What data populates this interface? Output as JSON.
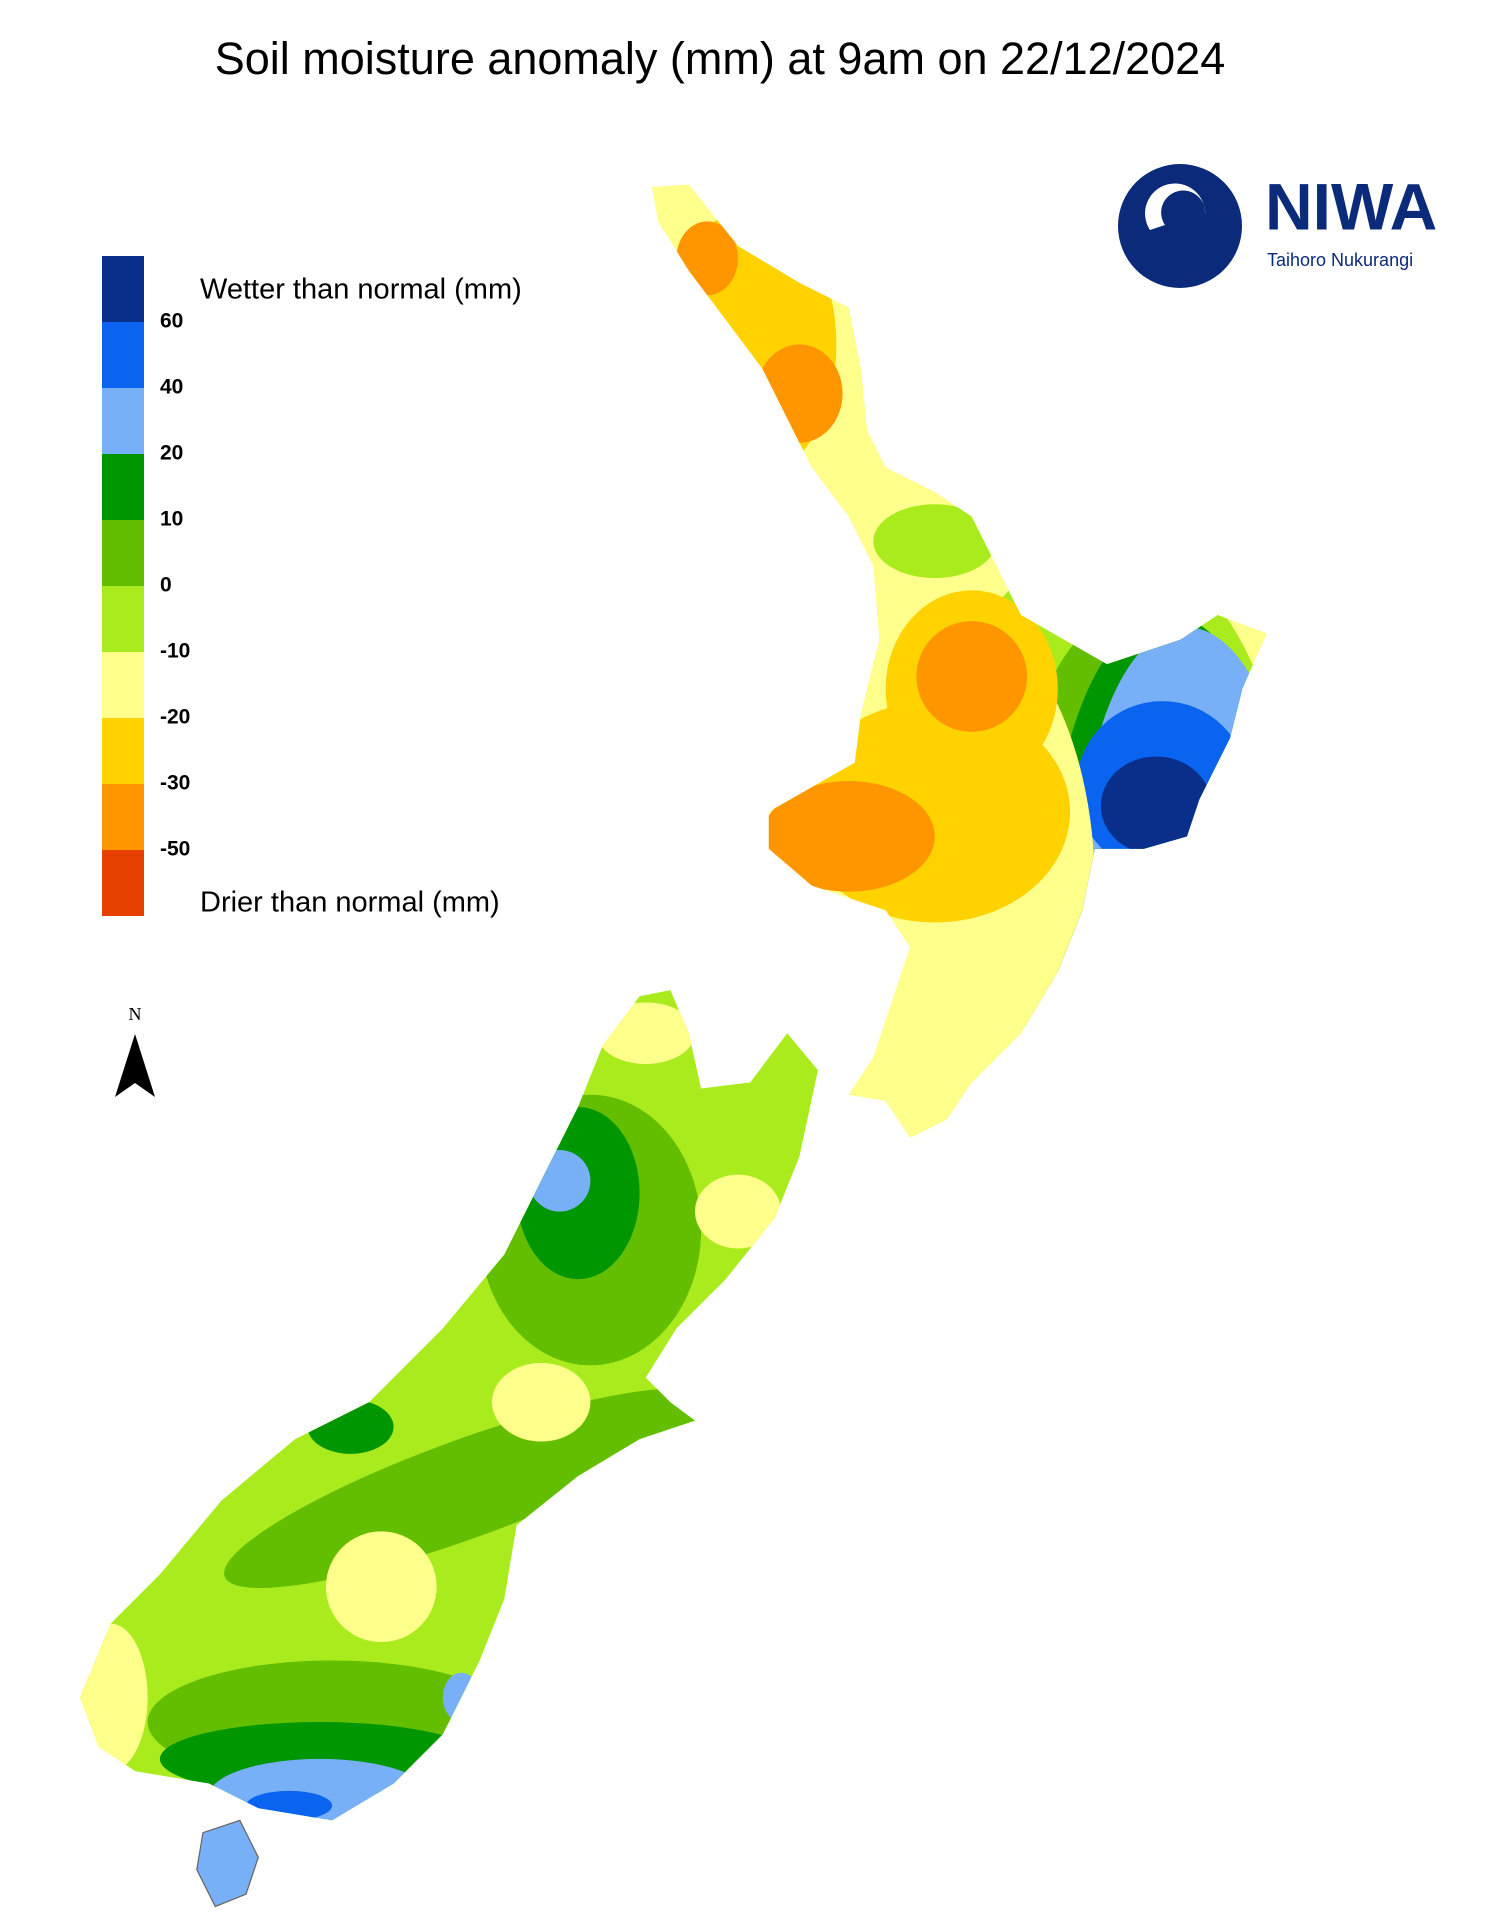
{
  "header": {
    "title": "Soil moisture anomaly (mm) at 9am on 22/12/2024"
  },
  "legend": {
    "top_label": "Wetter than normal (mm)",
    "bottom_label": "Drier than normal (mm)",
    "ticks": [
      60,
      40,
      20,
      10,
      0,
      -10,
      -20,
      -30,
      -50
    ],
    "colors": [
      "#0a2f8a",
      "#0a64f0",
      "#78b0f8",
      "#009600",
      "#64be00",
      "#aaeb1e",
      "#ffff8c",
      "#ffd200",
      "#ff9600",
      "#e64100"
    ]
  },
  "logo": {
    "name": "NIWA",
    "subtitle": "Taihoro Nukurangi"
  },
  "north_arrow": {
    "label": "N"
  }
}
